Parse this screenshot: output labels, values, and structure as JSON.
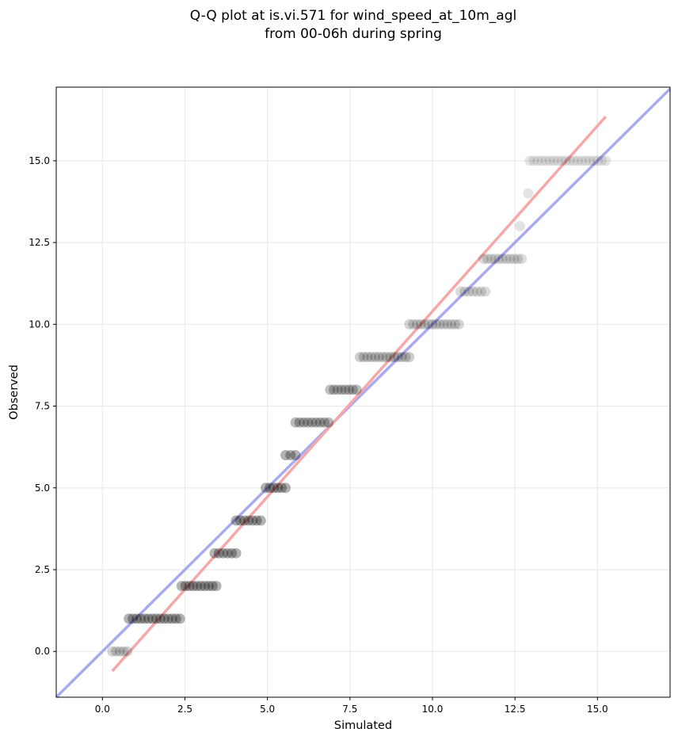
{
  "chart_data": {
    "type": "scatter",
    "title": "Q-Q plot at is.vi.571 for wind_speed_at_10m_agl",
    "subtitle": "from 00-06h during spring",
    "xlabel": "Simulated",
    "ylabel": "Observed",
    "xlim": [
      -1.4,
      17.2
    ],
    "ylim": [
      -1.4,
      17.25
    ],
    "x_ticks": [
      0.0,
      2.5,
      5.0,
      7.5,
      10.0,
      12.5,
      15.0
    ],
    "y_ticks": [
      0.0,
      2.5,
      5.0,
      7.5,
      10.0,
      12.5,
      15.0
    ],
    "x_tick_labels": [
      "0.0",
      "2.5",
      "5.0",
      "7.5",
      "10.0",
      "12.5",
      "15.0"
    ],
    "y_tick_labels": [
      "0.0",
      "2.5",
      "5.0",
      "7.5",
      "10.0",
      "12.5",
      "15.0"
    ],
    "grid": true,
    "point_color": "#000000",
    "one_to_one_line": {
      "color": "#aaaaf2",
      "x": [
        -1.4,
        17.2
      ],
      "y": [
        -1.4,
        17.2
      ]
    },
    "fit_line": {
      "color": "#f5a8aa",
      "x": [
        0.3,
        15.25
      ],
      "y": [
        -0.6,
        16.35
      ]
    },
    "clusters": [
      {
        "observed": 0,
        "sim_start": 0.3,
        "sim_end": 0.75,
        "opacity": 0.3
      },
      {
        "observed": 1,
        "sim_start": 0.8,
        "sim_end": 2.35,
        "opacity": 0.55
      },
      {
        "observed": 2,
        "sim_start": 2.4,
        "sim_end": 3.45,
        "opacity": 0.55
      },
      {
        "observed": 3,
        "sim_start": 3.4,
        "sim_end": 4.05,
        "opacity": 0.55
      },
      {
        "observed": 4,
        "sim_start": 4.05,
        "sim_end": 4.8,
        "opacity": 0.55
      },
      {
        "observed": 5,
        "sim_start": 4.95,
        "sim_end": 5.55,
        "opacity": 0.55
      },
      {
        "observed": 6,
        "sim_start": 5.55,
        "sim_end": 5.85,
        "opacity": 0.55
      },
      {
        "observed": 7,
        "sim_start": 5.85,
        "sim_end": 6.85,
        "opacity": 0.5
      },
      {
        "observed": 8,
        "sim_start": 6.9,
        "sim_end": 7.7,
        "opacity": 0.45
      },
      {
        "observed": 9,
        "sim_start": 7.8,
        "sim_end": 9.3,
        "opacity": 0.35
      },
      {
        "observed": 10,
        "sim_start": 9.3,
        "sim_end": 10.8,
        "opacity": 0.3
      },
      {
        "observed": 11,
        "sim_start": 10.85,
        "sim_end": 11.6,
        "opacity": 0.25
      },
      {
        "observed": 12,
        "sim_start": 11.55,
        "sim_end": 12.7,
        "opacity": 0.25
      },
      {
        "observed": 13,
        "sim_start": 12.65,
        "sim_end": 12.65,
        "opacity": 0.2
      },
      {
        "observed": 14,
        "sim_start": 12.9,
        "sim_end": 12.9,
        "opacity": 0.2
      },
      {
        "observed": 15,
        "sim_start": 12.95,
        "sim_end": 15.25,
        "opacity": 0.18
      }
    ]
  }
}
